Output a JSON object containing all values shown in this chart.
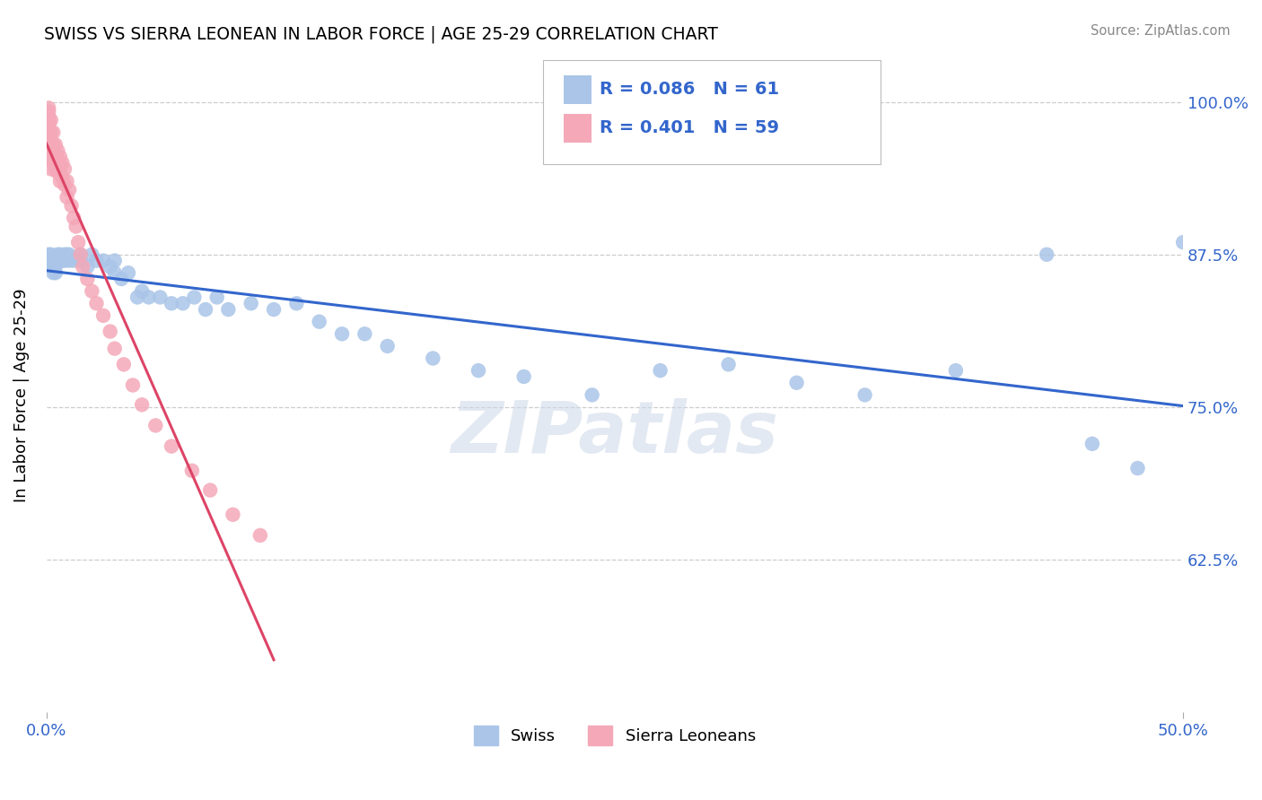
{
  "title": "SWISS VS SIERRA LEONEAN IN LABOR FORCE | AGE 25-29 CORRELATION CHART",
  "source": "Source: ZipAtlas.com",
  "ylabel": "In Labor Force | Age 25-29",
  "xlim": [
    0.0,
    0.5
  ],
  "ylim": [
    0.5,
    1.02
  ],
  "yticks": [
    0.625,
    0.75,
    0.875,
    1.0
  ],
  "ytick_labels": [
    "62.5%",
    "75.0%",
    "87.5%",
    "100.0%"
  ],
  "xtick_labels": [
    "0.0%",
    "50.0%"
  ],
  "swiss_color": "#aac5e8",
  "sierra_color": "#f4a8b8",
  "swiss_line_color": "#3366cc",
  "sierra_line_color": "#dd4466",
  "swiss_R": 0.086,
  "swiss_N": 61,
  "sierra_R": 0.401,
  "sierra_N": 59,
  "swiss_x": [
    0.001,
    0.001,
    0.002,
    0.002,
    0.002,
    0.003,
    0.003,
    0.003,
    0.004,
    0.004,
    0.005,
    0.005,
    0.006,
    0.007,
    0.008,
    0.008,
    0.009,
    0.01,
    0.01,
    0.012,
    0.015,
    0.015,
    0.018,
    0.02,
    0.022,
    0.025,
    0.028,
    0.03,
    0.03,
    0.033,
    0.036,
    0.04,
    0.042,
    0.045,
    0.05,
    0.055,
    0.06,
    0.065,
    0.07,
    0.075,
    0.08,
    0.09,
    0.1,
    0.11,
    0.12,
    0.13,
    0.14,
    0.15,
    0.17,
    0.19,
    0.21,
    0.24,
    0.27,
    0.3,
    0.33,
    0.36,
    0.4,
    0.44,
    0.46,
    0.48,
    0.5
  ],
  "swiss_y": [
    0.875,
    0.87,
    0.875,
    0.865,
    0.87,
    0.87,
    0.865,
    0.86,
    0.865,
    0.86,
    0.87,
    0.875,
    0.875,
    0.87,
    0.875,
    0.87,
    0.875,
    0.875,
    0.87,
    0.87,
    0.875,
    0.87,
    0.865,
    0.875,
    0.87,
    0.87,
    0.865,
    0.87,
    0.86,
    0.855,
    0.86,
    0.84,
    0.845,
    0.84,
    0.84,
    0.835,
    0.835,
    0.84,
    0.83,
    0.84,
    0.83,
    0.835,
    0.83,
    0.835,
    0.82,
    0.81,
    0.81,
    0.8,
    0.79,
    0.78,
    0.775,
    0.76,
    0.78,
    0.785,
    0.77,
    0.76,
    0.78,
    0.875,
    0.72,
    0.7,
    0.885
  ],
  "sierra_x": [
    0.001,
    0.001,
    0.001,
    0.001,
    0.001,
    0.001,
    0.001,
    0.001,
    0.001,
    0.001,
    0.001,
    0.001,
    0.002,
    0.002,
    0.002,
    0.002,
    0.002,
    0.002,
    0.003,
    0.003,
    0.003,
    0.003,
    0.004,
    0.004,
    0.004,
    0.005,
    0.005,
    0.005,
    0.006,
    0.006,
    0.006,
    0.007,
    0.007,
    0.008,
    0.008,
    0.009,
    0.009,
    0.01,
    0.011,
    0.012,
    0.013,
    0.014,
    0.015,
    0.016,
    0.018,
    0.02,
    0.022,
    0.025,
    0.028,
    0.03,
    0.034,
    0.038,
    0.042,
    0.048,
    0.055,
    0.064,
    0.072,
    0.082,
    0.094
  ],
  "sierra_y": [
    0.995,
    0.992,
    0.988,
    0.985,
    0.982,
    0.978,
    0.975,
    0.972,
    0.968,
    0.965,
    0.962,
    0.958,
    0.985,
    0.975,
    0.965,
    0.96,
    0.952,
    0.945,
    0.975,
    0.965,
    0.958,
    0.952,
    0.965,
    0.955,
    0.945,
    0.96,
    0.95,
    0.942,
    0.955,
    0.945,
    0.935,
    0.95,
    0.938,
    0.945,
    0.932,
    0.935,
    0.922,
    0.928,
    0.915,
    0.905,
    0.898,
    0.885,
    0.875,
    0.865,
    0.855,
    0.845,
    0.835,
    0.825,
    0.812,
    0.798,
    0.785,
    0.768,
    0.752,
    0.735,
    0.718,
    0.698,
    0.682,
    0.662,
    0.645
  ],
  "watermark": "ZIPatlas",
  "background_color": "#ffffff",
  "grid_color": "#cccccc"
}
